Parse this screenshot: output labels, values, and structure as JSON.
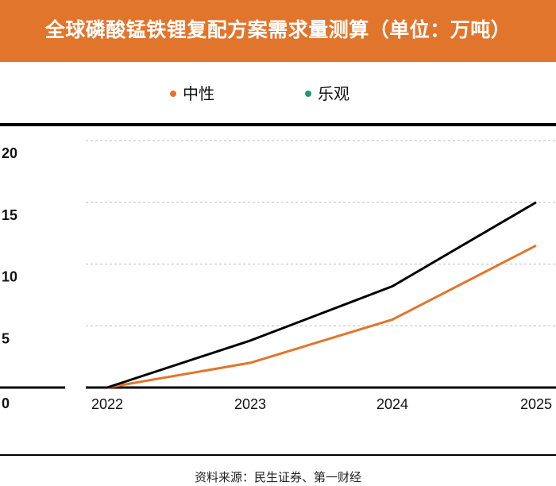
{
  "chart_data": {
    "type": "line",
    "title": "全球磷酸锰铁锂复配方案需求量测算（单位：万吨）",
    "x": [
      "2022",
      "2023",
      "2024",
      "2025"
    ],
    "series": [
      {
        "name": "中性",
        "color": "#e2752c",
        "values": [
          0,
          2,
          5.5,
          11.5
        ]
      },
      {
        "name": "乐观",
        "color": "#000000",
        "legend_color": "#1a9b78",
        "values": [
          0,
          3.8,
          8.2,
          15
        ]
      }
    ],
    "yticks": [
      "0",
      "5",
      "10",
      "15",
      "20"
    ],
    "ylim": [
      0,
      20
    ],
    "xlabel": "",
    "ylabel": "",
    "grid": true,
    "legend_position": "top-center",
    "source": "资料来源：民生证券、第一财经"
  },
  "colors": {
    "header_bg": "#e2752c",
    "grid": "#bdbdbd",
    "axis": "#000000"
  }
}
